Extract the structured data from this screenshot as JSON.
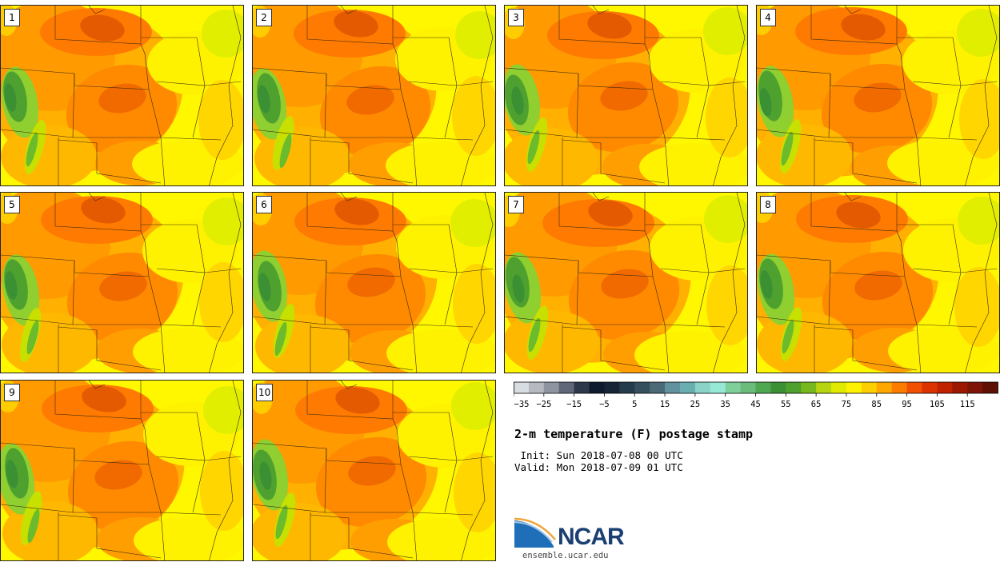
{
  "panels": [
    "1",
    "2",
    "3",
    "4",
    "5",
    "6",
    "7",
    "8",
    "9",
    "10"
  ],
  "colorbar": {
    "colors": [
      "#d8dde2",
      "#b6bac0",
      "#8e94a0",
      "#5f6778",
      "#2e384b",
      "#0e1a2e",
      "#172636",
      "#243c4c",
      "#36505e",
      "#4a6a77",
      "#6092a0",
      "#6aaeb0",
      "#8bd3c9",
      "#98e8d6",
      "#7fcf9a",
      "#6bbb7c",
      "#4fa752",
      "#3c9034",
      "#4ea02f",
      "#78b81f",
      "#b6d40f",
      "#e0ea00",
      "#fff200",
      "#fcd000",
      "#fca800",
      "#fa7d00",
      "#f05000",
      "#dc3200",
      "#c02200",
      "#9c1800",
      "#7e1408",
      "#5e1005"
    ],
    "tick_labels": [
      "−35",
      "−25",
      "−15",
      "−5",
      "5",
      "15",
      "25",
      "35",
      "45",
      "55",
      "65",
      "75",
      "85",
      "95",
      "105",
      "115"
    ]
  },
  "title": "2-m temperature (F) postage stamp",
  "init": " Init: Sun 2018-07-08 00 UTC",
  "valid": "Valid: Mon 2018-07-09 01 UTC",
  "logo_text": "NCAR",
  "site": "ensemble.ucar.edu"
}
